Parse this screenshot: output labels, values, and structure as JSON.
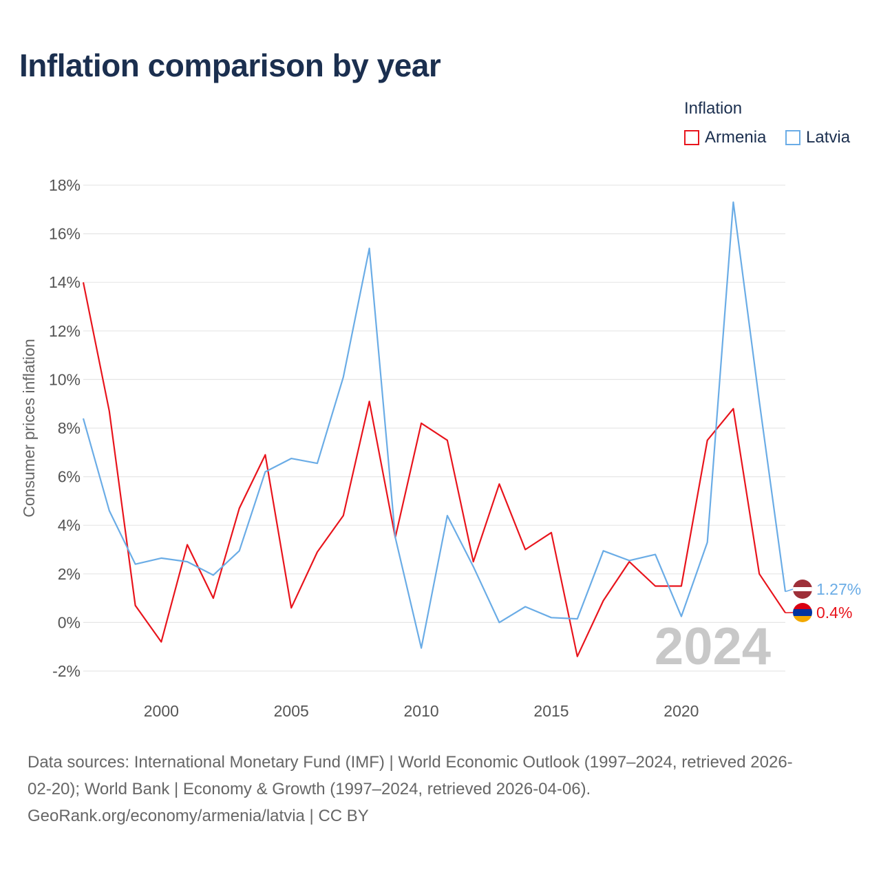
{
  "title": "Inflation comparison by year",
  "legend": {
    "title": "Inflation",
    "items": [
      {
        "label": "Armenia",
        "color": "#e8141c"
      },
      {
        "label": "Latvia",
        "color": "#6aace6"
      }
    ]
  },
  "chart_data": {
    "type": "line",
    "title": "Inflation comparison by year",
    "xlabel": "",
    "ylabel": "Consumer prices inflation",
    "xlim": [
      1997,
      2024
    ],
    "ylim": [
      -2,
      18
    ],
    "x_ticks": [
      "2000",
      "2005",
      "2010",
      "2015",
      "2020"
    ],
    "y_ticks": [
      "18%",
      "16%",
      "14%",
      "12%",
      "10%",
      "8%",
      "6%",
      "4%",
      "2%",
      "0%",
      "-2%"
    ],
    "grid": true,
    "year_overlay": "2024",
    "x": [
      1997,
      1998,
      1999,
      2000,
      2001,
      2002,
      2003,
      2004,
      2005,
      2006,
      2007,
      2008,
      2009,
      2010,
      2011,
      2012,
      2013,
      2014,
      2015,
      2016,
      2017,
      2018,
      2019,
      2020,
      2021,
      2022,
      2023,
      2024
    ],
    "series": [
      {
        "name": "Armenia",
        "color": "#e8141c",
        "values": [
          14.0,
          8.7,
          0.7,
          -0.8,
          3.2,
          1.0,
          4.7,
          6.9,
          0.6,
          2.9,
          4.4,
          9.1,
          3.5,
          8.2,
          7.5,
          2.5,
          5.7,
          3.0,
          3.7,
          -1.4,
          0.9,
          2.5,
          1.5,
          1.5,
          7.5,
          8.8,
          2.0,
          0.4
        ],
        "end_label": "0.4%"
      },
      {
        "name": "Latvia",
        "color": "#6aace6",
        "values": [
          8.4,
          4.6,
          2.4,
          2.65,
          2.5,
          1.95,
          2.95,
          6.2,
          6.75,
          6.55,
          10.1,
          15.4,
          3.5,
          -1.05,
          4.4,
          2.3,
          0.0,
          0.65,
          0.2,
          0.15,
          2.95,
          2.55,
          2.8,
          0.25,
          3.3,
          17.3,
          9.1,
          1.27
        ],
        "end_label": "1.27%"
      }
    ]
  },
  "sources": {
    "line1": "Data sources: International Monetary Fund (IMF) | World Economic Outlook (1997–2024, retrieved 2026-",
    "line2": "02-20); World Bank | Economy & Growth (1997–2024, retrieved 2026-04-06).",
    "line3": "GeoRank.org/economy/armenia/latvia | CC BY"
  }
}
